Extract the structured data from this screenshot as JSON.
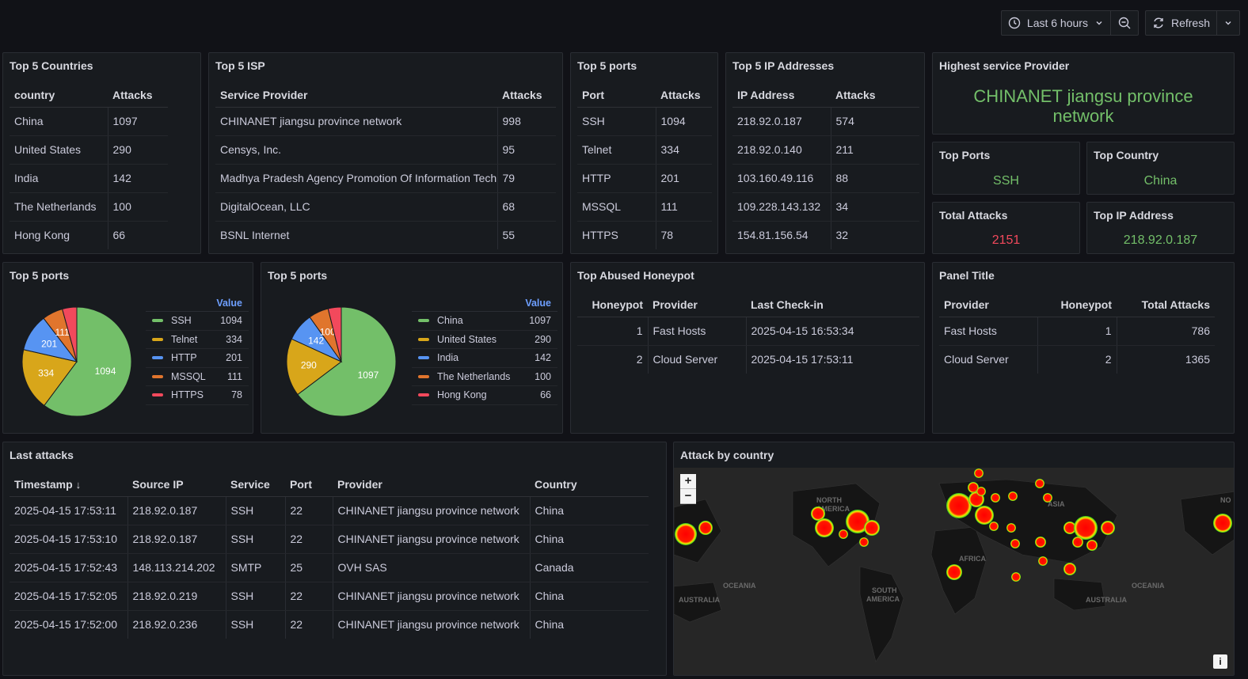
{
  "toolbar": {
    "time_range": "Last 6 hours",
    "refresh_label": "Refresh"
  },
  "colors": {
    "ssh": "#73bf69",
    "telnet": "#d8a61a",
    "http": "#5794f2",
    "mssql": "#e0752d",
    "https": "#f2495c"
  },
  "top_countries": {
    "title": "Top 5 Countries",
    "headers": [
      "country",
      "Attacks"
    ],
    "rows": [
      [
        "China",
        "1097"
      ],
      [
        "United States",
        "290"
      ],
      [
        "India",
        "142"
      ],
      [
        "The Netherlands",
        "100"
      ],
      [
        "Hong Kong",
        "66"
      ]
    ]
  },
  "top_isp": {
    "title": "Top 5 ISP",
    "headers": [
      "Service Provider",
      "Attacks"
    ],
    "rows": [
      [
        "CHINANET jiangsu province network",
        "998"
      ],
      [
        "Censys, Inc.",
        "95"
      ],
      [
        "Madhya Pradesh Agency Promotion Of Information Technology",
        "79"
      ],
      [
        "DigitalOcean, LLC",
        "68"
      ],
      [
        "BSNL Internet",
        "55"
      ]
    ]
  },
  "top_ports": {
    "title": "Top 5 ports",
    "headers": [
      "Port",
      "Attacks"
    ],
    "rows": [
      [
        "SSH",
        "1094"
      ],
      [
        "Telnet",
        "334"
      ],
      [
        "HTTP",
        "201"
      ],
      [
        "MSSQL",
        "111"
      ],
      [
        "HTTPS",
        "78"
      ]
    ]
  },
  "top_ips": {
    "title": "Top 5 IP Addresses",
    "headers": [
      "IP Address",
      "Attacks"
    ],
    "rows": [
      [
        "218.92.0.187",
        "574"
      ],
      [
        "218.92.0.140",
        "211"
      ],
      [
        "103.160.49.116",
        "88"
      ],
      [
        "109.228.143.132",
        "34"
      ],
      [
        "154.81.156.54",
        "32"
      ]
    ]
  },
  "highest_provider": {
    "title": "Highest service Provider",
    "line1": "CHINANET jiangsu province",
    "line2": "network"
  },
  "stat_top_ports": {
    "title": "Top Ports",
    "value": "SSH"
  },
  "stat_top_country": {
    "title": "Top Country",
    "value": "China"
  },
  "stat_total_attacks": {
    "title": "Total Attacks",
    "value": "2151"
  },
  "stat_top_ip": {
    "title": "Top IP Address",
    "value": "218.92.0.187"
  },
  "chart_data": [
    {
      "type": "pie",
      "title": "Top 5 ports",
      "legend_header": "Value",
      "legend_placement": "right",
      "categories": [
        "SSH",
        "Telnet",
        "HTTP",
        "MSSQL",
        "HTTPS"
      ],
      "values": [
        1094,
        334,
        201,
        111,
        78
      ],
      "colors": [
        "#73bf69",
        "#d8a61a",
        "#5794f2",
        "#e0752d",
        "#f2495c"
      ],
      "slice_labels": [
        "1094",
        "334",
        "201",
        "111",
        ""
      ]
    },
    {
      "type": "pie",
      "title": "Top 5 ports",
      "legend_header": "Value",
      "legend_placement": "right",
      "categories": [
        "China",
        "United States",
        "India",
        "The Netherlands",
        "Hong Kong"
      ],
      "values": [
        1097,
        290,
        142,
        100,
        66
      ],
      "colors": [
        "#73bf69",
        "#d8a61a",
        "#5794f2",
        "#e0752d",
        "#f2495c"
      ],
      "slice_labels": [
        "1097",
        "290",
        "142",
        "100",
        ""
      ]
    }
  ],
  "honeypot": {
    "title": "Top Abused Honeypot",
    "headers": [
      "Honeypot",
      "Provider",
      "Last Check-in"
    ],
    "rows": [
      [
        "1",
        "Fast Hosts",
        "2025-04-15 16:53:34"
      ],
      [
        "2",
        "Cloud Server",
        "2025-04-15 17:53:11"
      ]
    ]
  },
  "panel_title": {
    "title": "Panel Title",
    "headers": [
      "Provider",
      "Honeypot",
      "Total Attacks"
    ],
    "rows": [
      [
        "Fast Hosts",
        "1",
        "786"
      ],
      [
        "Cloud Server",
        "2",
        "1365"
      ]
    ]
  },
  "last_attacks": {
    "title": "Last attacks",
    "headers": [
      "Timestamp",
      "Source IP",
      "Service",
      "Port",
      "Provider",
      "Country"
    ],
    "rows": [
      [
        "2025-04-15 17:53:11",
        "218.92.0.187",
        "SSH",
        "22",
        "CHINANET jiangsu province network",
        "China"
      ],
      [
        "2025-04-15 17:53:10",
        "218.92.0.187",
        "SSH",
        "22",
        "CHINANET jiangsu province network",
        "China"
      ],
      [
        "2025-04-15 17:52:43",
        "148.113.214.202",
        "SMTP",
        "25",
        "OVH SAS",
        "Canada"
      ],
      [
        "2025-04-15 17:52:05",
        "218.92.0.219",
        "SSH",
        "22",
        "CHINANET jiangsu province network",
        "China"
      ],
      [
        "2025-04-15 17:52:00",
        "218.92.0.236",
        "SSH",
        "22",
        "CHINANET jiangsu province network",
        "China"
      ]
    ]
  },
  "attack_map": {
    "title": "Attack by country",
    "zoom_in": "+",
    "zoom_out": "−",
    "info": "i",
    "labels": [
      "NORTH",
      "AMERICA",
      "ASIA",
      "AFRICA",
      "OCEANIA",
      "SOUTH",
      "AMERICA",
      "OCEANIA",
      "AUSTRALIA",
      "AUSTRALIA",
      "NO"
    ]
  }
}
